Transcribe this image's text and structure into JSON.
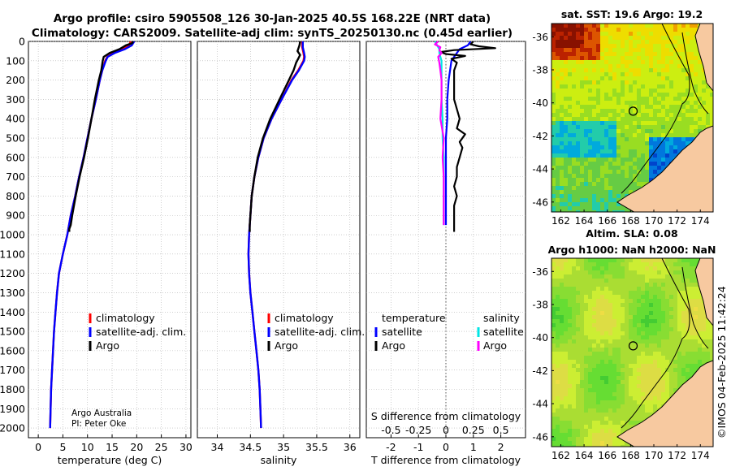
{
  "figure": {
    "title_line1": "Argo profile: csiro 5905508_126 30-Jan-2025 40.5S 168.22E (NRT data)",
    "title_line2": "Climatology: CARS2009. Satellite-adj clim: synTS_20250130.nc (0.45d earlier)",
    "credit_line1": "Argo Australia",
    "credit_line2": "PI: Peter Oke",
    "stamp": "©IMOS 04-Feb-2025 11:42:24"
  },
  "colors": {
    "climatology": "#ff0000",
    "satellite": "#0000ff",
    "argo": "#000000",
    "sat_salinity": "#00e5e5",
    "argo_salinity": "#ff00ff",
    "land": "#f7c9a0"
  },
  "depth_axis": {
    "range": [
      0,
      2050
    ],
    "ticks": [
      "0",
      "100",
      "200",
      "300",
      "400",
      "500",
      "600",
      "700",
      "800",
      "900",
      "1000",
      "1100",
      "1200",
      "1300",
      "1400",
      "1500",
      "1600",
      "1700",
      "1800",
      "1900",
      "2000"
    ]
  },
  "chart_data": [
    {
      "type": "line",
      "id": "temperature",
      "xlabel": "temperature (deg C)",
      "ylabel": "depth",
      "xlim": [
        -2,
        31
      ],
      "ylim": [
        2050,
        0
      ],
      "grid": true,
      "xticks": [
        "0",
        "5",
        "10",
        "15",
        "20",
        "25",
        "30"
      ],
      "legend": {
        "placement": "lower-right",
        "entries": [
          "climatology",
          "satellite-adj. clim.",
          "Argo"
        ]
      },
      "series": [
        {
          "name": "climatology",
          "depth": [
            0,
            20,
            40,
            60,
            80,
            100,
            150,
            200,
            300,
            400,
            500,
            600,
            700,
            800,
            900,
            1000,
            1100,
            1200,
            1300,
            1400,
            1500,
            1600,
            1700,
            1800,
            1900,
            2000
          ],
          "values": [
            18.8,
            18.4,
            17.2,
            15.2,
            14.0,
            13.6,
            13.0,
            12.5,
            11.7,
            10.8,
            10.0,
            9.2,
            8.3,
            7.5,
            6.6,
            5.9,
            5.0,
            4.2,
            3.8,
            3.5,
            3.2,
            3.0,
            2.8,
            2.6,
            2.5,
            2.4
          ]
        },
        {
          "name": "satellite-adj. clim.",
          "depth": [
            0,
            20,
            40,
            60,
            80,
            100,
            150,
            200,
            300,
            400,
            500,
            600,
            700,
            800,
            900,
            1000,
            1100,
            1200,
            1300,
            1400,
            1500,
            1600,
            1700,
            1800,
            1900,
            2000
          ],
          "values": [
            19.5,
            19.0,
            17.6,
            15.5,
            14.1,
            13.7,
            13.0,
            12.5,
            11.7,
            10.8,
            10.0,
            9.2,
            8.3,
            7.5,
            6.6,
            5.9,
            5.0,
            4.2,
            3.8,
            3.5,
            3.2,
            3.0,
            2.8,
            2.6,
            2.5,
            2.4
          ]
        },
        {
          "name": "Argo",
          "depth": [
            0,
            10,
            20,
            40,
            60,
            80,
            100,
            150,
            200,
            300,
            400,
            500,
            600,
            700,
            800,
            900,
            950,
            970,
            985
          ],
          "values": [
            19.3,
            19.0,
            17.8,
            16.5,
            14.5,
            13.3,
            13.1,
            12.8,
            12.3,
            11.5,
            10.8,
            10.1,
            9.3,
            8.4,
            7.6,
            6.9,
            6.6,
            6.3,
            6.3
          ]
        }
      ]
    },
    {
      "type": "line",
      "id": "salinity",
      "xlabel": "salinity",
      "ylabel": "depth",
      "xlim": [
        33.7,
        36.15
      ],
      "ylim": [
        2050,
        0
      ],
      "grid": true,
      "xticks": [
        "34",
        "34.5",
        "35",
        "35.5",
        "36"
      ],
      "legend": {
        "placement": "lower-right",
        "entries": [
          "climatology",
          "satellite-adj. clim.",
          "Argo"
        ]
      },
      "series": [
        {
          "name": "climatology",
          "depth": [
            0,
            30,
            60,
            80,
            100,
            150,
            200,
            300,
            400,
            500,
            600,
            700,
            800,
            900,
            1000,
            1100,
            1200,
            1300,
            1400,
            1500,
            1600,
            1700,
            1800,
            1900,
            2000
          ],
          "values": [
            35.28,
            35.28,
            35.3,
            35.31,
            35.3,
            35.22,
            35.12,
            34.97,
            34.82,
            34.7,
            34.62,
            34.56,
            34.52,
            34.5,
            34.48,
            34.47,
            34.48,
            34.5,
            34.53,
            34.56,
            34.59,
            34.62,
            34.64,
            34.65,
            34.66
          ]
        },
        {
          "name": "satellite-adj. clim.",
          "depth": [
            0,
            30,
            60,
            80,
            100,
            150,
            200,
            300,
            400,
            500,
            600,
            700,
            800,
            900,
            1000,
            1100,
            1200,
            1300,
            1400,
            1500,
            1600,
            1700,
            1800,
            1900,
            2000
          ],
          "values": [
            35.29,
            35.29,
            35.31,
            35.32,
            35.31,
            35.23,
            35.13,
            34.97,
            34.82,
            34.7,
            34.62,
            34.56,
            34.52,
            34.5,
            34.48,
            34.47,
            34.48,
            34.5,
            34.53,
            34.56,
            34.59,
            34.62,
            34.64,
            34.65,
            34.66
          ]
        },
        {
          "name": "Argo",
          "depth": [
            0,
            20,
            50,
            70,
            90,
            110,
            150,
            200,
            300,
            400,
            500,
            600,
            700,
            800,
            900,
            950,
            985
          ],
          "values": [
            35.25,
            35.24,
            35.21,
            35.25,
            35.22,
            35.19,
            35.15,
            35.08,
            34.94,
            34.8,
            34.69,
            34.61,
            34.56,
            34.52,
            34.5,
            34.49,
            34.49
          ]
        }
      ]
    },
    {
      "type": "line",
      "id": "difference",
      "xlabel": "T difference from climatology",
      "xlabel_top": "S difference from climatology",
      "ylabel": "depth",
      "xlim": [
        -2.9,
        2.9
      ],
      "ylim": [
        2050,
        0
      ],
      "grid": true,
      "xticks": [
        "-2",
        "-1",
        "0",
        "1",
        "2"
      ],
      "xticks_salinity": [
        "-0.5",
        "-0.25",
        "0",
        "0.25",
        "0.5"
      ],
      "legend": {
        "placement": "lower",
        "header_left": "temperature",
        "header_right": "salinity",
        "entries": [
          "satellite",
          "Argo",
          "satellite",
          "Argo"
        ]
      },
      "series": [
        {
          "name": "temperature satellite",
          "depth": [
            0,
            20,
            40,
            60,
            80,
            100,
            150,
            200,
            300,
            400,
            500,
            600,
            700,
            800,
            900,
            950
          ],
          "values": [
            0.9,
            0.8,
            0.5,
            0.4,
            0.3,
            0.2,
            0.15,
            0.1,
            0.05,
            0.05,
            0.0,
            0.0,
            0.0,
            0.0,
            0.0,
            0.0
          ]
        },
        {
          "name": "temperature Argo",
          "depth": [
            0,
            15,
            25,
            35,
            45,
            55,
            65,
            75,
            90,
            110,
            150,
            200,
            300,
            400,
            450,
            480,
            520,
            550,
            600,
            650,
            700,
            750,
            800,
            850,
            900,
            950,
            985
          ],
          "values": [
            1.0,
            0.9,
            1.2,
            1.8,
            0.3,
            -0.2,
            0.0,
            0.7,
            0.2,
            0.4,
            0.3,
            0.3,
            0.3,
            0.5,
            0.4,
            0.7,
            0.5,
            0.6,
            0.5,
            0.4,
            0.4,
            0.3,
            0.4,
            0.3,
            0.3,
            0.3,
            0.3
          ]
        },
        {
          "name": "salinity satellite",
          "depth": [
            0,
            20,
            40,
            60,
            80,
            100,
            150,
            200,
            300,
            400,
            500,
            600,
            700,
            800,
            900,
            950
          ],
          "values": [
            -0.1,
            -0.08,
            -0.06,
            -0.06,
            -0.05,
            -0.04,
            -0.04,
            -0.04,
            -0.04,
            -0.03,
            -0.03,
            -0.02,
            -0.02,
            -0.02,
            -0.02,
            -0.02
          ]
        },
        {
          "name": "salinity Argo",
          "depth": [
            0,
            15,
            30,
            45,
            60,
            80,
            110,
            150,
            200,
            300,
            400,
            500,
            600,
            700,
            800,
            900,
            950
          ],
          "values": [
            -0.07,
            -0.1,
            -0.05,
            -0.06,
            -0.04,
            -0.07,
            -0.06,
            -0.05,
            -0.04,
            -0.04,
            -0.05,
            -0.02,
            -0.03,
            -0.02,
            -0.02,
            -0.02,
            -0.02
          ]
        }
      ]
    },
    {
      "type": "heatmap",
      "id": "sst-map",
      "title": "sat. SST: 19.6 Argo: 19.2",
      "xlim": [
        161.2,
        175.1
      ],
      "ylim": [
        -46.6,
        -35.2
      ],
      "xticks": [
        "162",
        "164",
        "166",
        "168",
        "170",
        "172",
        "174"
      ],
      "yticks": [
        "-36",
        "-38",
        "-40",
        "-42",
        "-44",
        "-46"
      ],
      "marker": {
        "lon": 168.22,
        "lat": -40.5
      }
    },
    {
      "type": "heatmap",
      "id": "sla-map",
      "title_line1": "Altim. SLA: 0.08",
      "title_line2": "Argo h1000: NaN h2000: NaN",
      "xlim": [
        161.2,
        175.1
      ],
      "ylim": [
        -46.6,
        -35.2
      ],
      "xticks": [
        "162",
        "164",
        "166",
        "168",
        "170",
        "172",
        "174"
      ],
      "yticks": [
        "-36",
        "-38",
        "-40",
        "-42",
        "-44",
        "-46"
      ],
      "marker": {
        "lon": 168.22,
        "lat": -40.5
      }
    }
  ]
}
